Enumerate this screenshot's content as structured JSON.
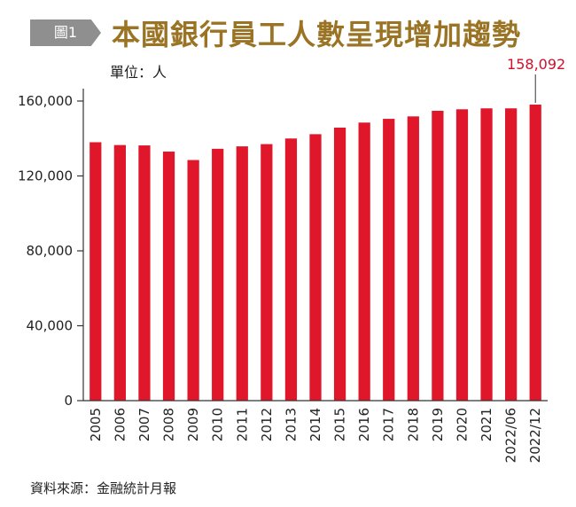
{
  "header": {
    "figure_tag": "圖1",
    "title": "本國銀行員工人數呈現增加趨勢",
    "unit": "單位：人"
  },
  "footer": {
    "source": "資料來源：金融統計月報"
  },
  "colors": {
    "bar": "#e0162b",
    "title": "#9a7424",
    "tag_background": "#8f8f8f",
    "axis": "#333333",
    "annotation": "#d0102a"
  },
  "chart_data": {
    "type": "bar",
    "title": "本國銀行員工人數呈現增加趨勢",
    "ylabel": "單位：人",
    "xlabel": "",
    "categories": [
      "2005",
      "2006",
      "2007",
      "2008",
      "2009",
      "2010",
      "2011",
      "2012",
      "2013",
      "2014",
      "2015",
      "2016",
      "2017",
      "2018",
      "2019",
      "2020",
      "2021",
      "2022/06",
      "2022/12"
    ],
    "values": [
      138000,
      136500,
      136300,
      133000,
      128500,
      134500,
      135800,
      137000,
      140000,
      142300,
      145800,
      148500,
      150500,
      151800,
      154800,
      155600,
      156100,
      156100,
      158092
    ],
    "ylim": [
      0,
      160000
    ],
    "yticks": [
      0,
      40000,
      80000,
      120000,
      160000
    ],
    "ytick_labels": [
      "0",
      "40,000",
      "80,000",
      "120,000",
      "160,000"
    ],
    "grid": false,
    "legend": "none",
    "annotation": {
      "category": "2022/12",
      "text": "158,092"
    }
  }
}
